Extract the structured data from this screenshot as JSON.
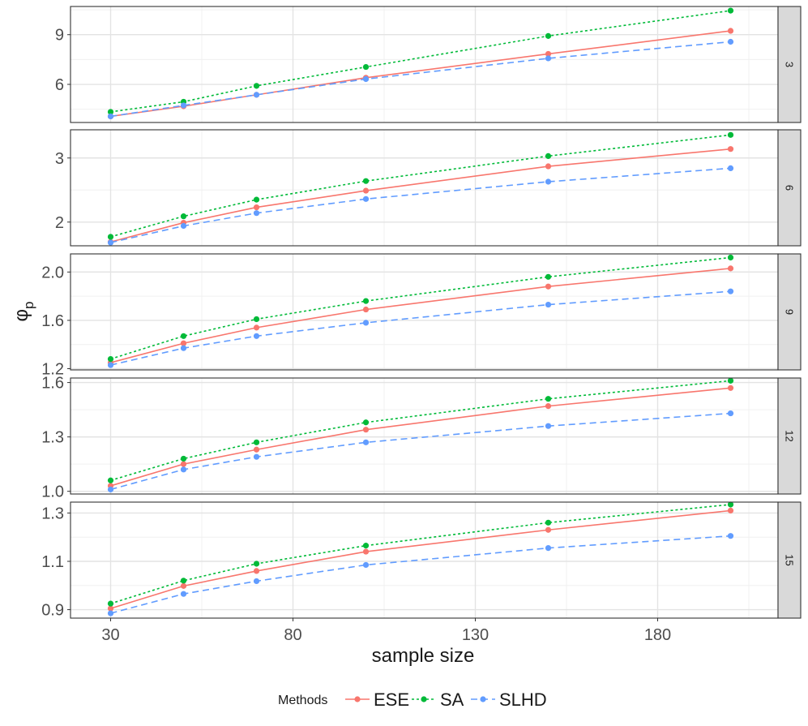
{
  "chart_data": {
    "type": "line",
    "facet_by": "dimension",
    "xlabel": "sample size",
    "ylabel": "φ",
    "ylabel_subscript": "p",
    "x": [
      30,
      50,
      70,
      100,
      150,
      200
    ],
    "x_ticks": [
      "30",
      "80",
      "130",
      "180"
    ],
    "x_tick_values": [
      30,
      80,
      130,
      180
    ],
    "xlim": [
      19,
      213
    ],
    "legend": {
      "title": "Methods",
      "position": "bottom",
      "entries": [
        "ESE",
        "SA",
        "SLHD"
      ]
    },
    "series_colors": {
      "ESE": "#F8766D",
      "SA": "#00BA38",
      "SLHD": "#619CFF"
    },
    "series_styles": {
      "ESE": "solid",
      "SA": "dotted",
      "SLHD": "dashed"
    },
    "panels": [
      {
        "label": "3",
        "ylim": [
          3.7,
          10.7
        ],
        "y_ticks": [
          "6",
          "9"
        ],
        "y_tick_values": [
          6,
          9
        ],
        "y_minor": [
          4.5,
          7.5,
          10.5
        ],
        "series": [
          {
            "name": "ESE",
            "values": [
              4.07,
              4.68,
              5.37,
              6.4,
              7.84,
              9.23
            ]
          },
          {
            "name": "SA",
            "values": [
              4.34,
              4.95,
              5.91,
              7.05,
              8.92,
              10.45
            ]
          },
          {
            "name": "SLHD",
            "values": [
              4.07,
              4.73,
              5.37,
              6.32,
              7.57,
              8.57
            ]
          }
        ]
      },
      {
        "label": "6",
        "ylim": [
          1.63,
          3.44
        ],
        "y_ticks": [
          "2",
          "3"
        ],
        "y_tick_values": [
          2,
          3
        ],
        "y_minor": [
          2.5
        ],
        "series": [
          {
            "name": "ESE",
            "values": [
              1.69,
              1.99,
              2.23,
              2.49,
              2.87,
              3.14
            ]
          },
          {
            "name": "SA",
            "values": [
              1.77,
              2.09,
              2.35,
              2.64,
              3.03,
              3.36
            ]
          },
          {
            "name": "SLHD",
            "values": [
              1.68,
              1.94,
              2.14,
              2.36,
              2.63,
              2.84
            ]
          }
        ]
      },
      {
        "label": "9",
        "ylim": [
          1.19,
          2.15
        ],
        "y_ticks": [
          "1.2",
          "1.6",
          "2.0"
        ],
        "y_tick_values": [
          1.2,
          1.6,
          2.0
        ],
        "y_minor": [
          1.4,
          1.8
        ],
        "series": [
          {
            "name": "ESE",
            "values": [
              1.25,
              1.41,
              1.54,
              1.69,
              1.88,
              2.03
            ]
          },
          {
            "name": "SA",
            "values": [
              1.28,
              1.47,
              1.61,
              1.76,
              1.96,
              2.12
            ]
          },
          {
            "name": "SLHD",
            "values": [
              1.23,
              1.37,
              1.47,
              1.58,
              1.73,
              1.84
            ]
          }
        ]
      },
      {
        "label": "12",
        "ylim": [
          0.985,
          1.625
        ],
        "y_ticks": [
          "1.0",
          "1.3",
          "1.6"
        ],
        "y_tick_values": [
          1.0,
          1.3,
          1.6
        ],
        "y_minor": [
          1.15,
          1.45
        ],
        "series": [
          {
            "name": "ESE",
            "values": [
              1.03,
              1.15,
              1.23,
              1.34,
              1.47,
              1.57
            ]
          },
          {
            "name": "SA",
            "values": [
              1.06,
              1.18,
              1.27,
              1.38,
              1.51,
              1.61
            ]
          },
          {
            "name": "SLHD",
            "values": [
              1.01,
              1.12,
              1.19,
              1.27,
              1.36,
              1.43
            ]
          }
        ]
      },
      {
        "label": "15",
        "ylim": [
          0.865,
          1.345
        ],
        "y_ticks": [
          "0.9",
          "1.1",
          "1.3"
        ],
        "y_tick_values": [
          0.9,
          1.1,
          1.3
        ],
        "y_minor": [
          1.0,
          1.2
        ],
        "series": [
          {
            "name": "ESE",
            "values": [
              0.905,
              0.998,
              1.06,
              1.14,
              1.23,
              1.31
            ]
          },
          {
            "name": "SA",
            "values": [
              0.925,
              1.02,
              1.09,
              1.165,
              1.26,
              1.335
            ]
          },
          {
            "name": "SLHD",
            "values": [
              0.885,
              0.965,
              1.018,
              1.085,
              1.155,
              1.205
            ]
          }
        ]
      }
    ]
  }
}
